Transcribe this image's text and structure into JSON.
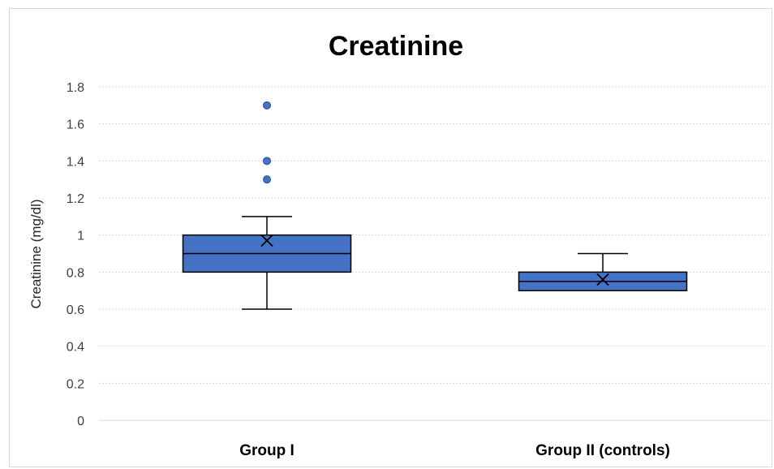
{
  "chart_data": {
    "type": "box",
    "title": "Creatinine",
    "xlabel": "",
    "ylabel": "Creatinine (mg/dl)",
    "ylim": [
      0,
      1.8
    ],
    "yticks": [
      "0",
      "0.2",
      "0.4",
      "0.6",
      "0.8",
      "1",
      "1.2",
      "1.4",
      "1.6",
      "1.8"
    ],
    "ytick_values": [
      0,
      0.2,
      0.4,
      0.6,
      0.8,
      1.0,
      1.2,
      1.4,
      1.6,
      1.8
    ],
    "grid": true,
    "legend": "none",
    "box_color": "#4472C4",
    "box_edge_color": "#000000",
    "categories": [
      "Group I",
      "Group II (controls)"
    ],
    "boxes": [
      {
        "category": "Group I",
        "whisker_low": 0.6,
        "q1": 0.8,
        "median": 0.9,
        "q3": 1.0,
        "whisker_high": 1.1,
        "mean": 0.97,
        "outliers": [
          1.3,
          1.4,
          1.7
        ]
      },
      {
        "category": "Group II (controls)",
        "whisker_low": 0.7,
        "q1": 0.7,
        "median": 0.75,
        "q3": 0.8,
        "whisker_high": 0.9,
        "mean": 0.76,
        "outliers": []
      }
    ]
  }
}
